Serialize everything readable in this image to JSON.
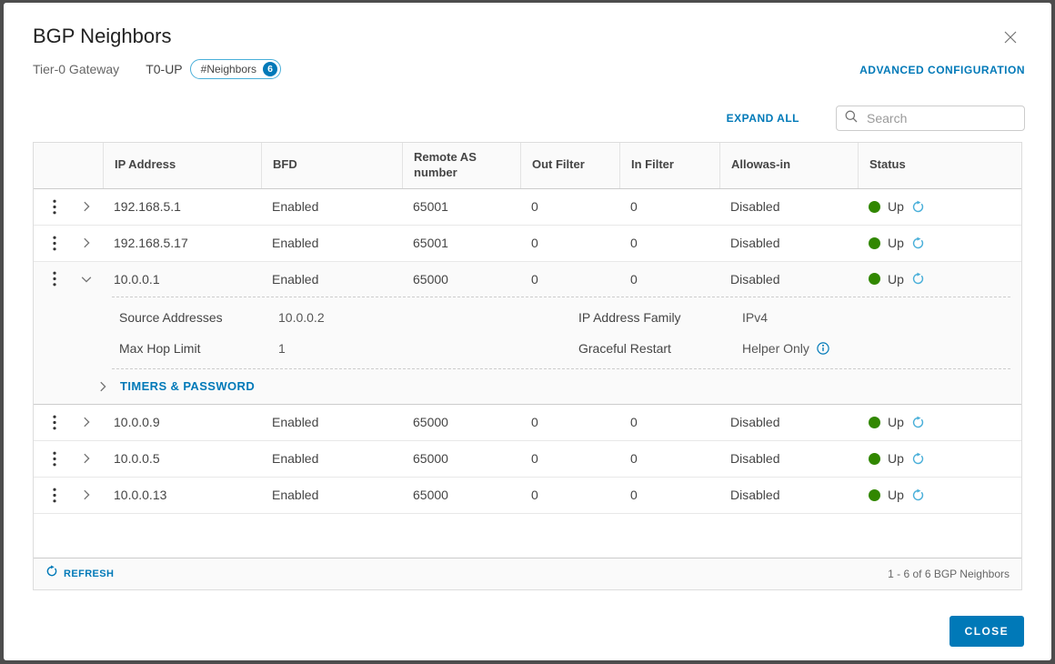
{
  "dialog": {
    "title": "BGP Neighbors",
    "subtitle_label": "Tier-0 Gateway",
    "gateway_name": "T0-UP",
    "badge": {
      "label": "#Neighbors",
      "count": "6"
    },
    "advanced_link": "ADVANCED CONFIGURATION",
    "close_button": "CLOSE"
  },
  "toolbar": {
    "expand_all": "EXPAND ALL",
    "search_placeholder": "Search"
  },
  "table": {
    "columns": [
      "IP Address",
      "BFD",
      "Remote AS number",
      "Out Filter",
      "In Filter",
      "Allowas-in",
      "Status"
    ],
    "rows": [
      {
        "ip": "192.168.5.1",
        "bfd": "Enabled",
        "remote_as": "65001",
        "out_filter": "0",
        "in_filter": "0",
        "allowas_in": "Disabled",
        "status": "Up",
        "expanded": false
      },
      {
        "ip": "192.168.5.17",
        "bfd": "Enabled",
        "remote_as": "65001",
        "out_filter": "0",
        "in_filter": "0",
        "allowas_in": "Disabled",
        "status": "Up",
        "expanded": false
      },
      {
        "ip": "10.0.0.1",
        "bfd": "Enabled",
        "remote_as": "65000",
        "out_filter": "0",
        "in_filter": "0",
        "allowas_in": "Disabled",
        "status": "Up",
        "expanded": true,
        "details": {
          "fields": [
            {
              "label": "Source Addresses",
              "value": "10.0.0.2"
            },
            {
              "label": "IP Address Family",
              "value": "IPv4"
            },
            {
              "label": "Max Hop Limit",
              "value": "1"
            },
            {
              "label": "Graceful Restart",
              "value": "Helper Only",
              "info": true
            }
          ],
          "timers_link": "TIMERS & PASSWORD"
        }
      },
      {
        "ip": "10.0.0.9",
        "bfd": "Enabled",
        "remote_as": "65000",
        "out_filter": "0",
        "in_filter": "0",
        "allowas_in": "Disabled",
        "status": "Up",
        "expanded": false
      },
      {
        "ip": "10.0.0.5",
        "bfd": "Enabled",
        "remote_as": "65000",
        "out_filter": "0",
        "in_filter": "0",
        "allowas_in": "Disabled",
        "status": "Up",
        "expanded": false
      },
      {
        "ip": "10.0.0.13",
        "bfd": "Enabled",
        "remote_as": "65000",
        "out_filter": "0",
        "in_filter": "0",
        "allowas_in": "Disabled",
        "status": "Up",
        "expanded": false
      }
    ],
    "footer": {
      "refresh_label": "REFRESH",
      "count_text": "1 - 6 of 6 BGP Neighbors"
    }
  },
  "colors": {
    "action_blue": "#0079b8",
    "icon_blue": "#49afd9",
    "status_green": "#318700",
    "frame_gray": "#4d4d4d"
  }
}
